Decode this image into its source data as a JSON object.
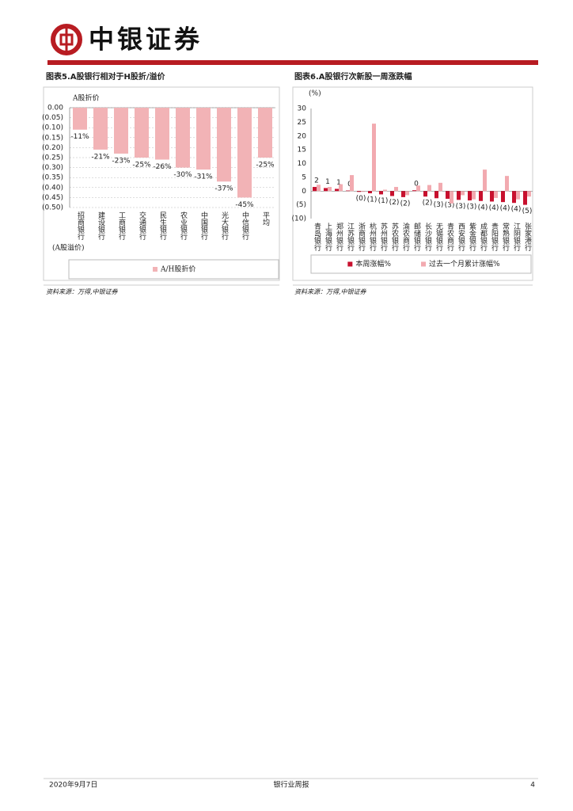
{
  "header": {
    "logo_text": "中银证券"
  },
  "chart_data": [
    {
      "type": "bar",
      "title": "图表5.A股银行相对于H股折/溢价",
      "source": "资料来源：万得,中银证券",
      "ylabel": "A股折价",
      "ylabel_negative": "(A股溢价)",
      "categories": [
        "招商银行",
        "建设银行",
        "工商银行",
        "交通银行",
        "民生银行",
        "农业银行",
        "中国银行",
        "光大银行",
        "中信银行",
        "平均"
      ],
      "series": [
        {
          "name": "A/H股折价",
          "color": "#f2b3b6",
          "values": [
            -0.11,
            -0.21,
            -0.23,
            -0.25,
            -0.26,
            -0.3,
            -0.31,
            -0.37,
            -0.45,
            -0.25
          ],
          "value_labels": [
            "-11%",
            "-21%",
            "-23%",
            "-25%",
            "-26%",
            "-30%",
            "-31%",
            "-37%",
            "-45%",
            "-25%"
          ]
        }
      ],
      "ylim": [
        -0.5,
        0
      ],
      "yticks": [
        {
          "value": 0,
          "label": "0.00"
        },
        {
          "value": -0.05,
          "label": "(0.05)"
        },
        {
          "value": -0.1,
          "label": "(0.10)"
        },
        {
          "value": -0.15,
          "label": "(0.15)"
        },
        {
          "value": -0.2,
          "label": "(0.20)"
        },
        {
          "value": -0.25,
          "label": "(0.25)"
        },
        {
          "value": -0.3,
          "label": "(0.30)"
        },
        {
          "value": -0.35,
          "label": "(0.35)"
        },
        {
          "value": -0.4,
          "label": "(0.40)"
        },
        {
          "value": -0.45,
          "label": "(0.45)"
        },
        {
          "value": -0.5,
          "label": "(0.50)"
        }
      ],
      "grid": true
    },
    {
      "type": "bar",
      "title": "图表6.A股银行次新股一周涨跌幅",
      "source": "资料来源：万得,中银证券",
      "ylabel": "(%)",
      "categories": [
        "青岛银行",
        "上海银行",
        "郑州银行",
        "江苏银行",
        "浙商银行",
        "杭州银行",
        "苏州银行",
        "苏农银行",
        "渝农商行",
        "邮储银行",
        "长沙银行",
        "无锡银行",
        "青农商行",
        "西安银行",
        "紫金银行",
        "成都银行",
        "贵阳银行",
        "常熟银行",
        "江阴银行",
        "张家港行"
      ],
      "series": [
        {
          "name": "本周涨幅%",
          "color": "#c8102e",
          "values": [
            1.5,
            1.1,
            0.8,
            0.2,
            -0.3,
            -0.8,
            -1.2,
            -1.8,
            -2.2,
            0.3,
            -2.0,
            -2.6,
            -2.8,
            -3.2,
            -3.4,
            -3.6,
            -3.8,
            -4.0,
            -4.3,
            -5.0
          ],
          "value_labels": [
            "2",
            "1",
            "1",
            "0",
            "(0)",
            "(1)",
            "(1)",
            "(2)",
            "(2)",
            "0",
            "(2)",
            "(3)",
            "(3)",
            "(3)",
            "(3)",
            "(4)",
            "(4)",
            "(4)",
            "(4)",
            "(5)"
          ]
        },
        {
          "name": "过去一个月累计涨幅%",
          "color": "#f2aab0",
          "values": [
            2.3,
            1.5,
            2.5,
            5.8,
            -0.3,
            24.5,
            0.5,
            1.5,
            -1.5,
            2.0,
            2.2,
            3.0,
            -4.5,
            -1.5,
            -3.0,
            7.8,
            -2.5,
            5.5,
            -3.0,
            -2.0
          ]
        }
      ],
      "ylim": [
        -10,
        30
      ],
      "yticks": [
        30,
        25,
        20,
        15,
        10,
        5,
        0,
        {
          "value": -5,
          "label": "(5)"
        },
        {
          "value": -10,
          "label": "(10)"
        }
      ],
      "grid": false
    }
  ],
  "footer": {
    "date": "2020年9月7日",
    "title": "银行业周报",
    "page": "4"
  }
}
